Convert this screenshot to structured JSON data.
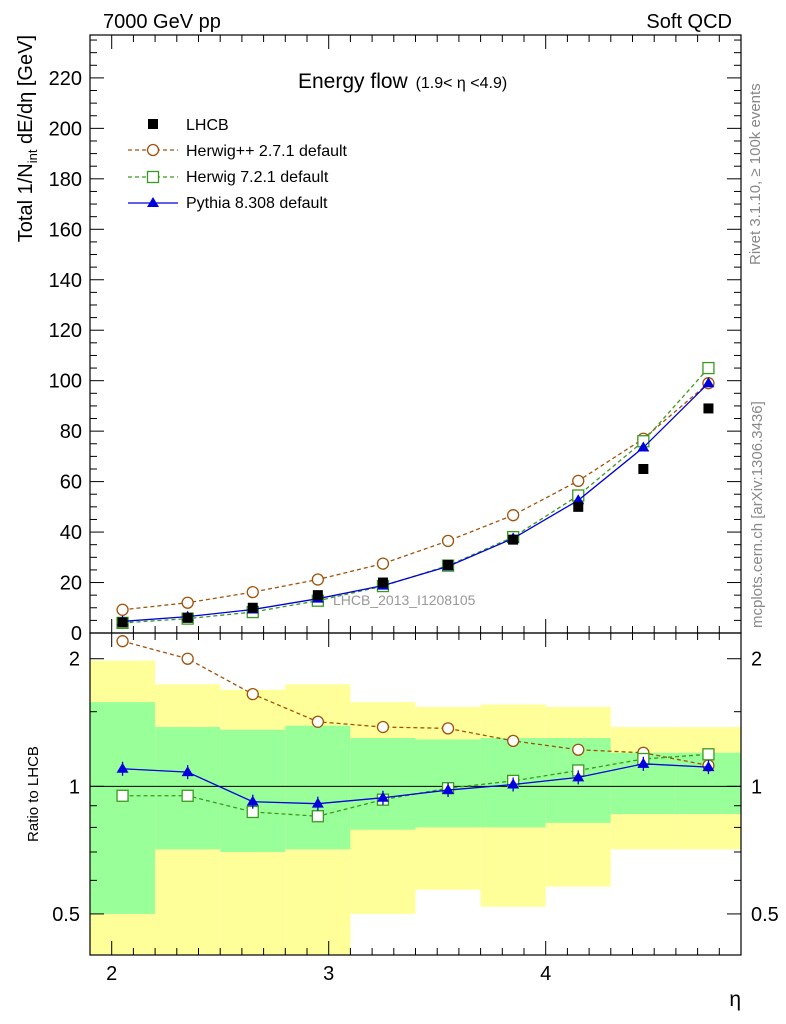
{
  "header": {
    "left": "7000 GeV pp",
    "right": "Soft QCD"
  },
  "side_labels": {
    "rivet": "Rivet 3.1.10, ≥ 100k events",
    "mcplots": "mcplots.cern.ch [arXiv:1306.3436]"
  },
  "colors": {
    "data": "#000000",
    "herwigpp": "#a0520a",
    "herwig7": "#3a9a1e",
    "pythia": "#0000dd",
    "band_inner": "#99ff99",
    "band_outer": "#ffff99"
  },
  "chart_data": [
    {
      "type": "scatter",
      "panel": "main",
      "title": "Energy flow",
      "title_suffix": "(1.9< η <4.9)",
      "ylabel_main": "Total 1/N",
      "ylabel_sub": "int",
      "ylabel_rest": " dE/dη [GeV]",
      "watermark": "LHCB_2013_I1208105",
      "xlim": [
        1.9,
        4.9
      ],
      "ylim": [
        0,
        237
      ],
      "y_ticks": [
        0,
        20,
        40,
        60,
        80,
        100,
        120,
        140,
        160,
        180,
        200,
        220
      ],
      "y_tick_labels": [
        "0",
        "20",
        "40",
        "60",
        "80",
        "100",
        "120",
        "140",
        "160",
        "180",
        "200",
        "220"
      ],
      "legend_position": "top-left",
      "x": [
        2.05,
        2.35,
        2.65,
        2.95,
        3.25,
        3.55,
        3.85,
        4.15,
        4.45,
        4.75
      ],
      "series": [
        {
          "name": "LHCB",
          "key": "data",
          "marker": "filled-square",
          "values": [
            4.2,
            6.0,
            10.0,
            15.0,
            20.0,
            27.0,
            37.0,
            50.0,
            65.0,
            89.0
          ]
        },
        {
          "name": "Herwig++ 2.7.1 default",
          "key": "herwigpp",
          "marker": "open-circle",
          "dashed": true,
          "values": [
            9.2,
            12.0,
            16.2,
            21.2,
            27.5,
            36.5,
            46.7,
            60.3,
            77.0,
            99.0
          ]
        },
        {
          "name": "Herwig 7.2.1 default",
          "key": "herwig7",
          "marker": "open-square",
          "dashed": true,
          "values": [
            4.0,
            5.7,
            8.3,
            12.8,
            18.6,
            26.7,
            38.0,
            54.5,
            76.0,
            105.0
          ]
        },
        {
          "name": "Pythia 8.308 default",
          "key": "pythia",
          "marker": "filled-triangle",
          "dashed": false,
          "values": [
            4.6,
            6.5,
            9.3,
            13.6,
            18.8,
            26.4,
            37.5,
            52.6,
            73.5,
            99.0
          ]
        }
      ]
    },
    {
      "type": "scatter",
      "panel": "ratio",
      "ylabel": "Ratio to LHCB",
      "xlabel": "η",
      "log_y": true,
      "xlim": [
        1.9,
        4.9
      ],
      "ylim": [
        0.4,
        2.3
      ],
      "x_ticks": [
        2,
        3,
        4
      ],
      "x_tick_labels": [
        "2",
        "3",
        "4"
      ],
      "y_ticks": [
        0.5,
        1,
        2
      ],
      "y_tick_labels": [
        "0.5",
        "1",
        "2"
      ],
      "bins": [
        [
          1.9,
          2.2
        ],
        [
          2.2,
          2.5
        ],
        [
          2.5,
          2.8
        ],
        [
          2.8,
          3.1
        ],
        [
          3.1,
          3.4
        ],
        [
          3.4,
          3.7
        ],
        [
          3.7,
          4.0
        ],
        [
          4.0,
          4.3
        ],
        [
          4.3,
          4.6
        ],
        [
          4.6,
          4.9
        ]
      ],
      "band_inner": [
        [
          0.5,
          1.58
        ],
        [
          0.71,
          1.38
        ],
        [
          0.7,
          1.36
        ],
        [
          0.71,
          1.39
        ],
        [
          0.79,
          1.3
        ],
        [
          0.8,
          1.29
        ],
        [
          0.8,
          1.3
        ],
        [
          0.82,
          1.3
        ],
        [
          0.86,
          1.2
        ],
        [
          0.86,
          1.2
        ]
      ],
      "band_outer": [
        [
          0.3,
          1.98
        ],
        [
          0.3,
          1.74
        ],
        [
          0.3,
          1.69
        ],
        [
          0.3,
          1.74
        ],
        [
          0.5,
          1.58
        ],
        [
          0.57,
          1.54
        ],
        [
          0.52,
          1.56
        ],
        [
          0.58,
          1.54
        ],
        [
          0.71,
          1.38
        ],
        [
          0.71,
          1.38
        ]
      ],
      "x": [
        2.05,
        2.35,
        2.65,
        2.95,
        3.25,
        3.55,
        3.85,
        4.15,
        4.45,
        4.75
      ],
      "series": [
        {
          "name": "Herwig++ 2.7.1 default",
          "key": "herwigpp",
          "marker": "open-circle",
          "dashed": true,
          "values": [
            2.2,
            2.0,
            1.65,
            1.42,
            1.38,
            1.37,
            1.28,
            1.22,
            1.2,
            1.12
          ]
        },
        {
          "name": "Herwig 7.2.1 default",
          "key": "herwig7",
          "marker": "open-square",
          "dashed": true,
          "values": [
            0.95,
            0.95,
            0.87,
            0.85,
            0.93,
            0.99,
            1.03,
            1.09,
            1.16,
            1.19
          ]
        },
        {
          "name": "Pythia 8.308 default",
          "key": "pythia",
          "marker": "filled-triangle",
          "dashed": false,
          "values": [
            1.1,
            1.08,
            0.92,
            0.91,
            0.94,
            0.98,
            1.01,
            1.05,
            1.13,
            1.11
          ]
        }
      ]
    }
  ]
}
